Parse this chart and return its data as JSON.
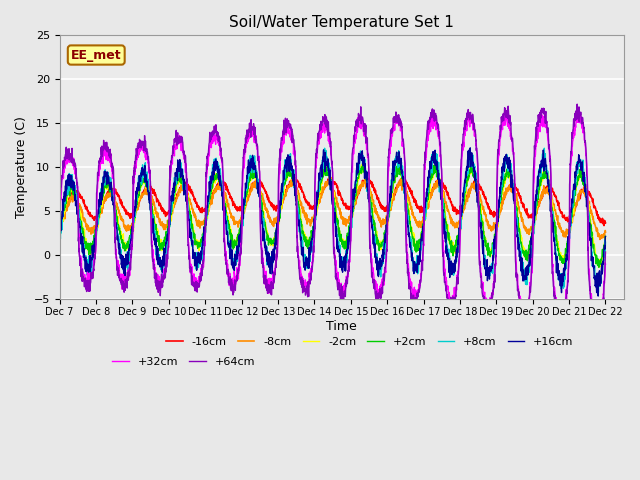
{
  "title": "Soil/Water Temperature Set 1",
  "xlabel": "Time",
  "ylabel": "Temperature (C)",
  "ylim": [
    -5,
    25
  ],
  "series": [
    {
      "label": "-16cm",
      "color": "#ff0000",
      "lw": 1.2
    },
    {
      "label": "-8cm",
      "color": "#ff8c00",
      "lw": 1.2
    },
    {
      "label": "-2cm",
      "color": "#ffff00",
      "lw": 1.0
    },
    {
      "label": "+2cm",
      "color": "#00cc00",
      "lw": 1.0
    },
    {
      "label": "+8cm",
      "color": "#00cccc",
      "lw": 1.0
    },
    {
      "label": "+16cm",
      "color": "#000099",
      "lw": 1.0
    },
    {
      "label": "+32cm",
      "color": "#ff00ff",
      "lw": 1.0
    },
    {
      "label": "+64cm",
      "color": "#8800bb",
      "lw": 1.0
    }
  ],
  "x_tick_labels": [
    "Dec 7",
    "Dec 8",
    "Dec 9",
    "Dec 10",
    "Dec 11",
    "Dec 12",
    "Dec 13",
    "Dec 14",
    "Dec 15",
    "Dec 16",
    "Dec 17",
    "Dec 18",
    "Dec 19",
    "Dec 20",
    "Dec 21",
    "Dec 22"
  ],
  "annotation_text": "EE_met",
  "annotation_fg": "#8B0000",
  "annotation_bg": "#ffff99",
  "annotation_border": "#aa6600",
  "fig_bg": "#e8e8e8",
  "plot_bg": "#ebebeb"
}
